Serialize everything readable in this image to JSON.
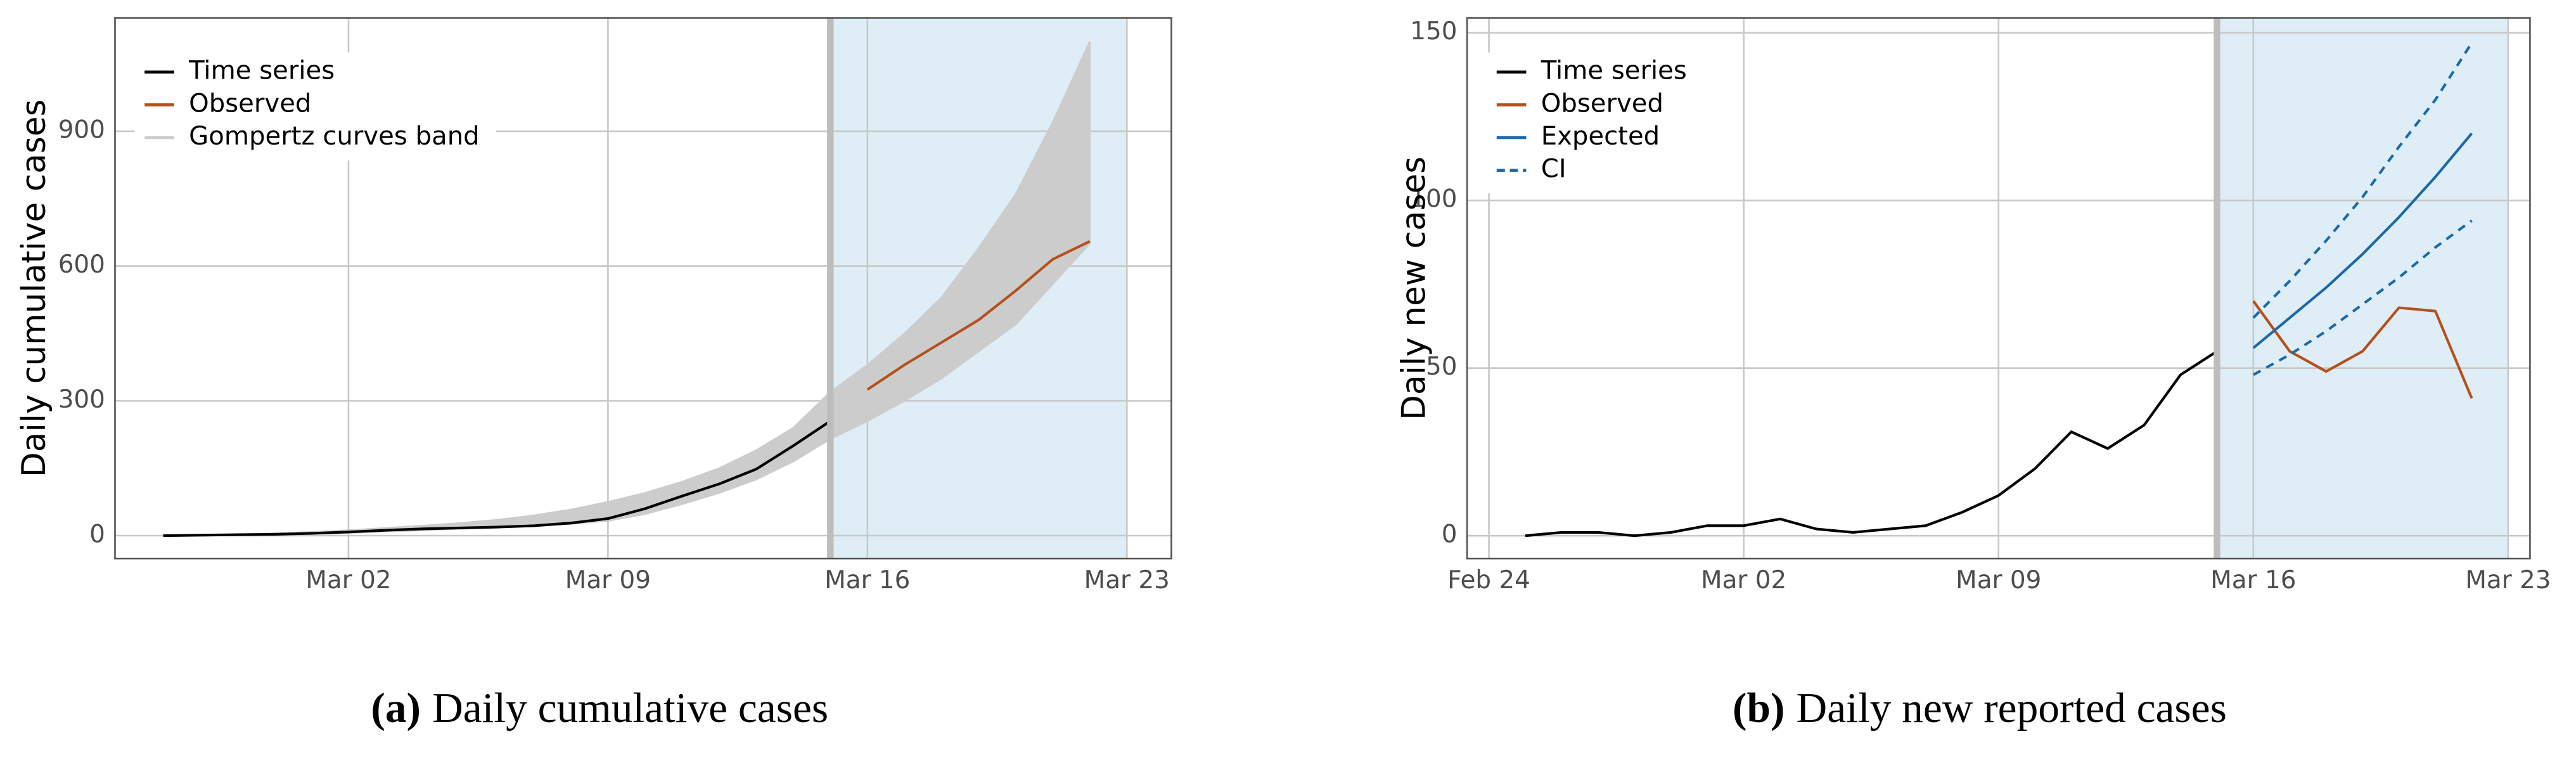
{
  "chart_data": [
    {
      "type": "line",
      "ylabel": "Daily cumulative cases",
      "caption_label": "(a)",
      "caption": "Daily cumulative cases",
      "xlim": [
        -4.3,
        24.2
      ],
      "xticks": [
        {
          "value": 2,
          "label": "Mar 02"
        },
        {
          "value": 9,
          "label": "Mar 09"
        },
        {
          "value": 16,
          "label": "Mar 16"
        },
        {
          "value": 23,
          "label": "Mar 23"
        }
      ],
      "ylim": [
        -51,
        1152
      ],
      "yticks": [
        0,
        300,
        600,
        900
      ],
      "grid": true,
      "legend": "upper left",
      "shade": {
        "span": [
          15,
          23
        ],
        "color": "#deedf6"
      },
      "vline": {
        "x": 15,
        "color": "#bdbdbd"
      },
      "series": [
        {
          "name": "Gompertz curves band",
          "color": "#cccccc",
          "style": "band",
          "x": [
            -3,
            -2,
            -1,
            0,
            1,
            2,
            3,
            4,
            5,
            6,
            7,
            8,
            9,
            10,
            11,
            12,
            13,
            14,
            15,
            16,
            17,
            18,
            19,
            20,
            21,
            22
          ],
          "lower": [
            0,
            0,
            1,
            2,
            4,
            6,
            9,
            12,
            15,
            18,
            21,
            26,
            33,
            48,
            70,
            95,
            125,
            165,
            215,
            255,
            300,
            350,
            410,
            470,
            560,
            650
          ],
          "upper": [
            0,
            1,
            3,
            5,
            8,
            12,
            17,
            22,
            28,
            35,
            45,
            58,
            75,
            95,
            120,
            150,
            190,
            240,
            320,
            380,
            450,
            530,
            640,
            760,
            920,
            1100
          ]
        },
        {
          "name": "Time series",
          "color": "#000000",
          "style": "solid",
          "x": [
            -3,
            -2,
            -1,
            0,
            1,
            2,
            3,
            4,
            5,
            6,
            7,
            8,
            9,
            10,
            11,
            12,
            13,
            14,
            15
          ],
          "values": [
            0,
            1,
            2,
            3,
            5,
            8,
            12,
            15,
            17,
            19,
            22,
            28,
            38,
            60,
            88,
            115,
            148,
            200,
            255
          ]
        },
        {
          "name": "Observed",
          "color": "#b5501c",
          "style": "solid",
          "x": [
            16,
            17,
            18,
            19,
            20,
            21,
            22
          ],
          "values": [
            325,
            380,
            430,
            480,
            545,
            615,
            655
          ]
        }
      ]
    },
    {
      "type": "line",
      "ylabel": "Daily new cases",
      "caption_label": "(b)",
      "caption": "Daily new reported cases",
      "xlim": [
        -5.6,
        23.6
      ],
      "xticks": [
        {
          "value": -5,
          "label": "Feb 24"
        },
        {
          "value": 2,
          "label": "Mar 02"
        },
        {
          "value": 9,
          "label": "Mar 09"
        },
        {
          "value": 16,
          "label": "Mar 16"
        },
        {
          "value": 23,
          "label": "Mar 23"
        }
      ],
      "ylim": [
        -6.8,
        154.4
      ],
      "yticks": [
        0,
        50,
        100,
        150
      ],
      "grid": true,
      "legend": "upper left",
      "shade": {
        "span": [
          15,
          23
        ],
        "color": "#deedf6"
      },
      "vline": {
        "x": 15,
        "color": "#bdbdbd"
      },
      "series": [
        {
          "name": "Time series",
          "color": "#000000",
          "style": "solid",
          "x": [
            -4,
            -3,
            -2,
            -1,
            0,
            1,
            2,
            3,
            4,
            5,
            6,
            7,
            8,
            9,
            10,
            11,
            12,
            13,
            14,
            15
          ],
          "values": [
            0,
            1,
            1,
            0,
            1,
            3,
            3,
            5,
            2,
            1,
            2,
            3,
            7,
            12,
            20,
            31,
            26,
            33,
            48,
            55
          ]
        },
        {
          "name": "Observed",
          "color": "#b5501c",
          "style": "solid",
          "x": [
            16,
            17,
            18,
            19,
            20,
            21,
            22
          ],
          "values": [
            70,
            55,
            49,
            55,
            68,
            67,
            41
          ]
        },
        {
          "name": "Expected",
          "color": "#1a6aaa",
          "style": "solid",
          "x": [
            16,
            17,
            18,
            19,
            20,
            21,
            22
          ],
          "values": [
            56,
            65,
            74,
            84,
            95,
            107,
            120
          ]
        },
        {
          "name": "CI",
          "color": "#1a6aaa",
          "style": "dashed",
          "x": [
            16,
            17,
            18,
            19,
            20,
            21,
            22
          ],
          "lower": [
            48,
            54,
            61,
            69,
            77,
            86,
            94
          ],
          "upper": [
            65,
            76,
            88,
            101,
            116,
            130,
            147
          ]
        }
      ]
    }
  ]
}
